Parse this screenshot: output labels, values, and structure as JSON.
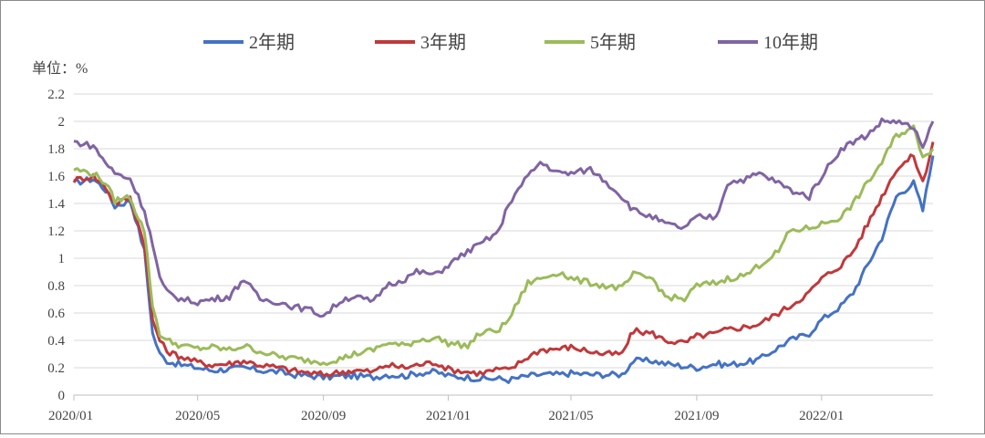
{
  "colors": {
    "s2y": "#4472C4",
    "s3y": "#C0393B",
    "s5y": "#9BBB59",
    "s10y": "#8064A2",
    "grid": "#D9D9D9",
    "axis": "#BFBFBF",
    "text": "#444444"
  },
  "chart_data": {
    "type": "line",
    "ylabel": "单位：%",
    "ylim": [
      0,
      2.2
    ],
    "yticks": [
      "0",
      "0.2",
      "0.4",
      "0.6",
      "0.8",
      "1",
      "1.2",
      "1.4",
      "1.6",
      "1.8",
      "2",
      "2.2"
    ],
    "xticks": [
      "2020/01",
      "2020/05",
      "2020/09",
      "2021/01",
      "2021/05",
      "2021/09",
      "2022/01"
    ],
    "xtick_dates": [
      "2020-01-01",
      "2020-05-01",
      "2020-09-01",
      "2021-01-01",
      "2021-05-01",
      "2021-09-01",
      "2022-01-01"
    ],
    "xlim": [
      "2020-01-01",
      "2022-04-20"
    ],
    "legend_position": "top",
    "grid": true,
    "series": [
      {
        "name": "2年期",
        "x": [
          "2020-01-01",
          "2020-01-20",
          "2020-02-01",
          "2020-02-10",
          "2020-02-25",
          "2020-03-01",
          "2020-03-10",
          "2020-03-18",
          "2020-03-25",
          "2020-04-01",
          "2020-04-15",
          "2020-05-01",
          "2020-05-15",
          "2020-06-01",
          "2020-06-15",
          "2020-07-01",
          "2020-07-20",
          "2020-08-01",
          "2020-08-20",
          "2020-09-01",
          "2020-09-20",
          "2020-10-01",
          "2020-10-20",
          "2020-11-01",
          "2020-11-20",
          "2020-12-01",
          "2020-12-20",
          "2021-01-01",
          "2021-01-20",
          "2021-02-01",
          "2021-02-20",
          "2021-03-01",
          "2021-03-20",
          "2021-04-01",
          "2021-04-20",
          "2021-05-01",
          "2021-05-20",
          "2021-06-01",
          "2021-06-20",
          "2021-07-01",
          "2021-07-20",
          "2021-08-01",
          "2021-08-20",
          "2021-09-01",
          "2021-09-20",
          "2021-10-01",
          "2021-10-20",
          "2021-11-01",
          "2021-11-20",
          "2021-12-01",
          "2021-12-20",
          "2022-01-01",
          "2022-01-20",
          "2022-02-01",
          "2022-02-15",
          "2022-03-01",
          "2022-03-15",
          "2022-04-01",
          "2022-04-10",
          "2022-04-20"
        ],
        "values": [
          1.55,
          1.58,
          1.5,
          1.38,
          1.42,
          1.3,
          1.05,
          0.45,
          0.3,
          0.25,
          0.22,
          0.2,
          0.18,
          0.19,
          0.2,
          0.18,
          0.17,
          0.15,
          0.14,
          0.13,
          0.14,
          0.14,
          0.13,
          0.15,
          0.14,
          0.16,
          0.17,
          0.14,
          0.13,
          0.12,
          0.12,
          0.11,
          0.14,
          0.15,
          0.15,
          0.16,
          0.15,
          0.15,
          0.15,
          0.25,
          0.25,
          0.23,
          0.21,
          0.2,
          0.23,
          0.22,
          0.24,
          0.26,
          0.35,
          0.4,
          0.45,
          0.55,
          0.65,
          0.75,
          0.95,
          1.15,
          1.45,
          1.55,
          1.35,
          1.75
        ]
      },
      {
        "name": "3年期",
        "x": [
          "2020-01-01",
          "2020-01-20",
          "2020-02-01",
          "2020-02-10",
          "2020-02-25",
          "2020-03-01",
          "2020-03-10",
          "2020-03-18",
          "2020-03-25",
          "2020-04-01",
          "2020-04-15",
          "2020-05-01",
          "2020-05-15",
          "2020-06-01",
          "2020-06-15",
          "2020-07-01",
          "2020-07-20",
          "2020-08-01",
          "2020-08-20",
          "2020-09-01",
          "2020-09-20",
          "2020-10-01",
          "2020-10-20",
          "2020-11-01",
          "2020-11-20",
          "2020-12-01",
          "2020-12-20",
          "2021-01-01",
          "2021-01-20",
          "2021-02-01",
          "2021-02-20",
          "2021-03-01",
          "2021-03-20",
          "2021-04-01",
          "2021-04-20",
          "2021-05-01",
          "2021-05-20",
          "2021-06-01",
          "2021-06-20",
          "2021-07-01",
          "2021-07-20",
          "2021-08-01",
          "2021-08-20",
          "2021-09-01",
          "2021-09-20",
          "2021-10-01",
          "2021-10-20",
          "2021-11-01",
          "2021-11-20",
          "2021-12-01",
          "2021-12-20",
          "2022-01-01",
          "2022-01-20",
          "2022-02-01",
          "2022-02-15",
          "2022-03-01",
          "2022-03-15",
          "2022-04-01",
          "2022-04-10",
          "2022-04-20"
        ],
        "values": [
          1.57,
          1.6,
          1.52,
          1.4,
          1.44,
          1.32,
          1.1,
          0.55,
          0.4,
          0.32,
          0.28,
          0.24,
          0.22,
          0.23,
          0.25,
          0.22,
          0.2,
          0.18,
          0.16,
          0.15,
          0.17,
          0.18,
          0.17,
          0.22,
          0.2,
          0.22,
          0.24,
          0.19,
          0.17,
          0.16,
          0.19,
          0.18,
          0.28,
          0.33,
          0.34,
          0.35,
          0.32,
          0.3,
          0.3,
          0.47,
          0.45,
          0.4,
          0.38,
          0.43,
          0.45,
          0.48,
          0.5,
          0.52,
          0.6,
          0.65,
          0.75,
          0.85,
          0.95,
          1.05,
          1.25,
          1.45,
          1.65,
          1.75,
          1.55,
          1.85
        ]
      },
      {
        "name": "5年期",
        "x": [
          "2020-01-01",
          "2020-01-20",
          "2020-02-01",
          "2020-02-10",
          "2020-02-25",
          "2020-03-01",
          "2020-03-10",
          "2020-03-18",
          "2020-03-25",
          "2020-04-01",
          "2020-04-15",
          "2020-05-01",
          "2020-05-15",
          "2020-06-01",
          "2020-06-15",
          "2020-07-01",
          "2020-07-20",
          "2020-08-01",
          "2020-08-20",
          "2020-09-01",
          "2020-09-20",
          "2020-10-01",
          "2020-10-20",
          "2020-11-01",
          "2020-11-20",
          "2020-12-01",
          "2020-12-20",
          "2021-01-01",
          "2021-01-20",
          "2021-02-01",
          "2021-02-20",
          "2021-03-01",
          "2021-03-20",
          "2021-04-01",
          "2021-04-20",
          "2021-05-01",
          "2021-05-20",
          "2021-06-01",
          "2021-06-20",
          "2021-07-01",
          "2021-07-20",
          "2021-08-01",
          "2021-08-20",
          "2021-09-01",
          "2021-09-20",
          "2021-10-01",
          "2021-10-20",
          "2021-11-01",
          "2021-11-20",
          "2021-12-01",
          "2021-12-20",
          "2022-01-01",
          "2022-01-20",
          "2022-02-01",
          "2022-02-15",
          "2022-03-01",
          "2022-03-15",
          "2022-04-01",
          "2022-04-10",
          "2022-04-20"
        ],
        "values": [
          1.65,
          1.62,
          1.55,
          1.42,
          1.45,
          1.35,
          1.2,
          0.65,
          0.45,
          0.4,
          0.36,
          0.34,
          0.35,
          0.33,
          0.36,
          0.32,
          0.28,
          0.27,
          0.25,
          0.24,
          0.27,
          0.3,
          0.33,
          0.38,
          0.36,
          0.4,
          0.42,
          0.38,
          0.36,
          0.45,
          0.48,
          0.55,
          0.82,
          0.85,
          0.9,
          0.85,
          0.82,
          0.8,
          0.78,
          0.88,
          0.85,
          0.72,
          0.7,
          0.8,
          0.82,
          0.85,
          0.88,
          0.95,
          1.05,
          1.2,
          1.22,
          1.25,
          1.3,
          1.4,
          1.55,
          1.7,
          1.9,
          1.95,
          1.75,
          1.8
        ]
      },
      {
        "name": "10年期",
        "x": [
          "2020-01-01",
          "2020-01-20",
          "2020-02-01",
          "2020-02-10",
          "2020-02-25",
          "2020-03-01",
          "2020-03-10",
          "2020-03-18",
          "2020-03-25",
          "2020-04-01",
          "2020-04-15",
          "2020-05-01",
          "2020-05-15",
          "2020-06-01",
          "2020-06-15",
          "2020-07-01",
          "2020-07-20",
          "2020-08-01",
          "2020-08-20",
          "2020-09-01",
          "2020-09-20",
          "2020-10-01",
          "2020-10-20",
          "2020-11-01",
          "2020-11-20",
          "2020-12-01",
          "2020-12-20",
          "2021-01-01",
          "2021-01-20",
          "2021-02-01",
          "2021-02-20",
          "2021-03-01",
          "2021-03-20",
          "2021-04-01",
          "2021-04-20",
          "2021-05-01",
          "2021-05-20",
          "2021-06-01",
          "2021-06-20",
          "2021-07-01",
          "2021-07-20",
          "2021-08-01",
          "2021-08-20",
          "2021-09-01",
          "2021-09-20",
          "2021-10-01",
          "2021-10-20",
          "2021-11-01",
          "2021-11-20",
          "2021-12-01",
          "2021-12-20",
          "2022-01-01",
          "2022-01-20",
          "2022-02-01",
          "2022-02-15",
          "2022-03-01",
          "2022-03-15",
          "2022-04-01",
          "2022-04-10",
          "2022-04-20"
        ],
        "values": [
          1.85,
          1.82,
          1.7,
          1.62,
          1.58,
          1.5,
          1.35,
          1.1,
          0.85,
          0.75,
          0.7,
          0.68,
          0.7,
          0.72,
          0.85,
          0.7,
          0.68,
          0.65,
          0.62,
          0.58,
          0.7,
          0.72,
          0.68,
          0.8,
          0.85,
          0.9,
          0.88,
          0.95,
          1.05,
          1.1,
          1.2,
          1.4,
          1.6,
          1.7,
          1.62,
          1.62,
          1.65,
          1.58,
          1.45,
          1.35,
          1.3,
          1.25,
          1.22,
          1.3,
          1.3,
          1.55,
          1.58,
          1.62,
          1.55,
          1.5,
          1.45,
          1.6,
          1.8,
          1.85,
          1.9,
          2.0,
          2.0,
          1.95,
          1.8,
          2.0
        ]
      }
    ]
  }
}
